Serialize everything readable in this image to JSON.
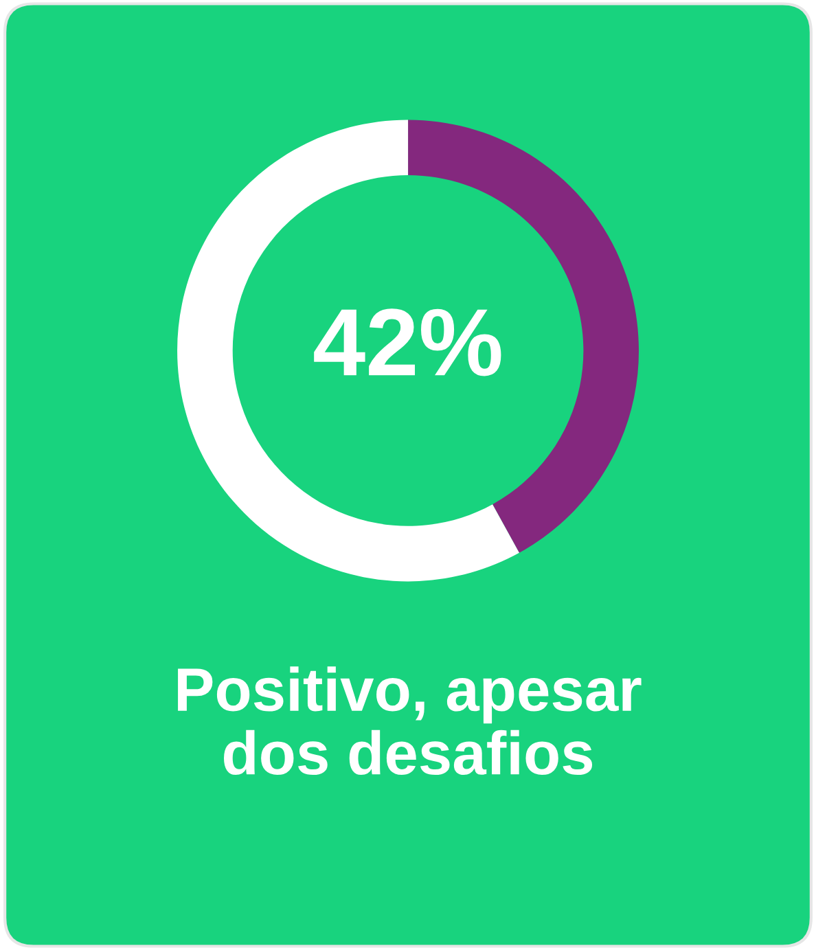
{
  "chart_data": {
    "type": "donut",
    "title": "Positivo, apesar dos desafios",
    "categories": [
      null,
      null
    ],
    "values": [
      42,
      58
    ],
    "colors": [
      "#84287e",
      "#ffffff"
    ],
    "value_labels": [
      "42%",
      null
    ]
  }
}
